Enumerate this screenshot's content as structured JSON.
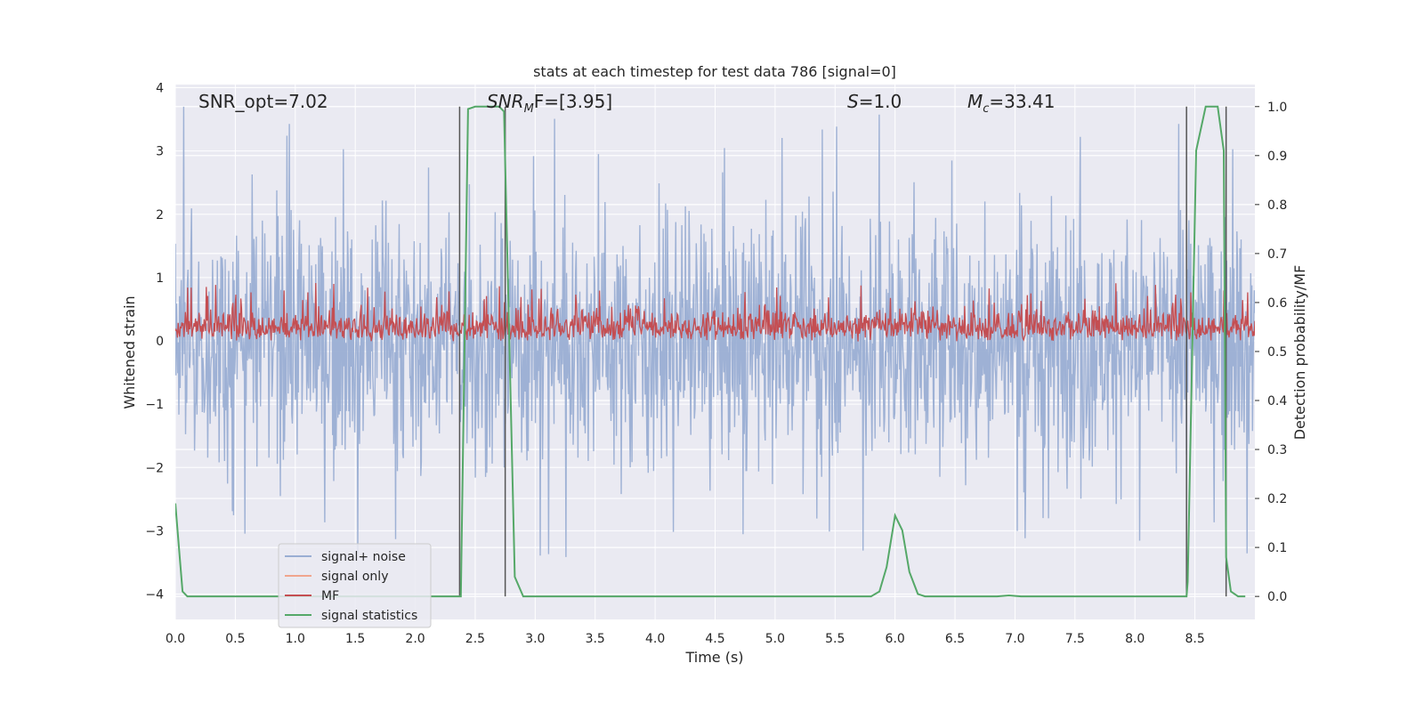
{
  "chart_data": {
    "type": "line",
    "title": "stats at each timestep for test data 786 [signal=0]",
    "xlabel": "Time (s)",
    "ylabel": "Whitened strain",
    "y2label": "Detection probability/MF",
    "xlim": [
      0.0,
      9.0
    ],
    "ylim": [
      -4.4,
      4.05
    ],
    "y2lim": [
      -0.047,
      1.045
    ],
    "xticks": [
      "0.0",
      "0.5",
      "1.0",
      "1.5",
      "2.0",
      "2.5",
      "3.0",
      "3.5",
      "4.0",
      "4.5",
      "5.0",
      "5.5",
      "6.0",
      "6.5",
      "7.0",
      "7.5",
      "8.0",
      "8.5"
    ],
    "yticks": [
      "4",
      "3",
      "2",
      "1",
      "0",
      "−1",
      "−2",
      "−3",
      "−4"
    ],
    "y2ticks": [
      "1.0",
      "0.9",
      "0.8",
      "0.7",
      "0.6",
      "0.5",
      "0.4",
      "0.3",
      "0.2",
      "0.1",
      "0.0"
    ],
    "grid": true,
    "legend_position": "lower-left",
    "annotations": [
      {
        "id": "snr-opt",
        "text": "SNR_opt=7.02"
      },
      {
        "id": "snr-mf",
        "base": "SNR",
        "sub": "M",
        "rest": "F=[3.95]"
      },
      {
        "id": "s-value",
        "base": "S",
        "rest": "=1.0"
      },
      {
        "id": "mc-value",
        "base": "M",
        "sub": "c",
        "rest": "=33.41"
      }
    ],
    "series": [
      {
        "name": "signal+ noise",
        "color": "#9aaed3",
        "axis": "left",
        "kind": "noise",
        "envelope_approx": {
          "upper_typical": 1.8,
          "upper_peaks": 3.7,
          "lower_typical": -1.8,
          "lower_peaks": -4.0
        }
      },
      {
        "name": "signal only",
        "color": "#f0a58e",
        "axis": "left",
        "values": []
      },
      {
        "name": "MF",
        "color": "#c44e52",
        "axis": "right",
        "kind": "noise",
        "envelope_approx": {
          "lower": 0.52,
          "upper_typical": 0.61,
          "upper_peaks": 0.64
        }
      },
      {
        "name": "signal statistics",
        "color": "#55a868",
        "axis": "right",
        "x": [
          0.0,
          0.06,
          0.1,
          0.2,
          2.37,
          2.38,
          2.44,
          2.5,
          2.7,
          2.74,
          2.83,
          2.9,
          5.8,
          5.87,
          5.93,
          6.0,
          6.06,
          6.12,
          6.19,
          6.25,
          6.85,
          6.95,
          7.05,
          8.43,
          8.44,
          8.51,
          8.59,
          8.69,
          8.74,
          8.76,
          8.8,
          8.86,
          8.92
        ],
        "y": [
          0.19,
          0.01,
          0.0,
          0.0,
          0.0,
          0.0,
          0.995,
          1.0,
          1.0,
          0.99,
          0.04,
          0.0,
          0.0,
          0.01,
          0.06,
          0.165,
          0.135,
          0.05,
          0.005,
          0.0,
          0.0,
          0.002,
          0.0,
          0.0,
          0.03,
          0.91,
          1.0,
          1.0,
          0.91,
          0.08,
          0.01,
          0.0,
          0.0
        ]
      }
    ],
    "vertical_markers_x": [
      2.37,
      2.75,
      8.43,
      8.76
    ]
  }
}
